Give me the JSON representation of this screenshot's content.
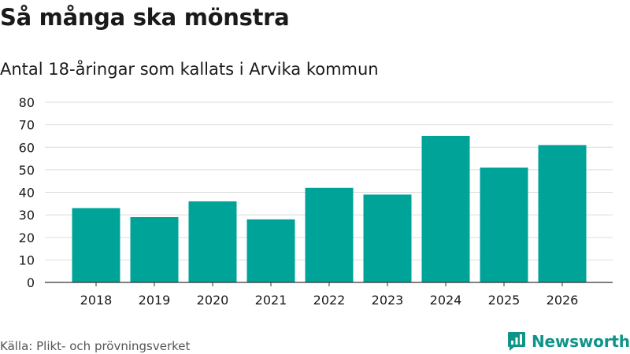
{
  "header": {
    "title": "Så många ska mönstra",
    "subtitle": "Antal 18-åringar som kallats i Arvika kommun"
  },
  "footer": {
    "source": "Källa: Plikt- och prövningsverket",
    "brand": "Newsworthy",
    "brand_icon": "bar-chart-speech-bubble-icon"
  },
  "colors": {
    "bar": "#00a398",
    "grid": "#dddddd",
    "axis": "#333333",
    "brand": "#0f9489"
  },
  "chart_data": {
    "type": "bar",
    "title": "Så många ska mönstra",
    "subtitle": "Antal 18-åringar som kallats i Arvika kommun",
    "xlabel": "",
    "ylabel": "",
    "categories": [
      "2018",
      "2019",
      "2020",
      "2021",
      "2022",
      "2023",
      "2024",
      "2025",
      "2026"
    ],
    "values": [
      33,
      29,
      36,
      28,
      42,
      39,
      65,
      51,
      61
    ],
    "ylim": [
      0,
      80
    ],
    "yticks": [
      0,
      10,
      20,
      30,
      40,
      50,
      60,
      70,
      80
    ],
    "grid": true,
    "legend": "none"
  }
}
